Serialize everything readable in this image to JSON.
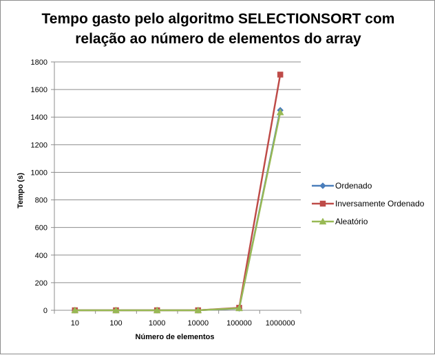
{
  "chart_data": {
    "type": "line",
    "title": "Tempo gasto pelo algoritmo SELECTIONSORT com\nrelação ao número de elementos do array",
    "xlabel": "Número de elementos",
    "ylabel": "Tempo (s)",
    "categories": [
      "10",
      "100",
      "1000",
      "10000",
      "100000",
      "1000000"
    ],
    "ylim": [
      0,
      1800
    ],
    "yticks": [
      0,
      200,
      400,
      600,
      800,
      1000,
      1200,
      1400,
      1600,
      1800
    ],
    "grid": "horizontal major gridlines",
    "legend_position": "right",
    "series": [
      {
        "name": "Ordenado",
        "values": [
          0,
          0,
          0,
          0,
          14,
          1450
        ],
        "color": "#4a7ebb",
        "marker": "diamond"
      },
      {
        "name": "Inversamente Ordenado",
        "values": [
          0,
          0,
          0,
          0,
          18,
          1708
        ],
        "color": "#be4b48",
        "marker": "square"
      },
      {
        "name": "Aleatório",
        "values": [
          0,
          0,
          0,
          0,
          15,
          1435
        ],
        "color": "#98b954",
        "marker": "triangle"
      }
    ]
  }
}
